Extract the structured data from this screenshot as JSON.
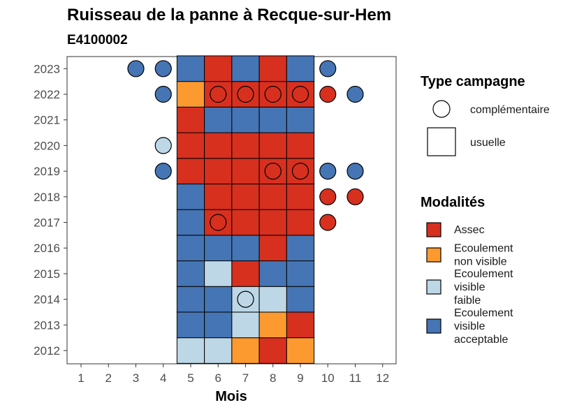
{
  "chart_data": {
    "type": "heatmap",
    "title": "Ruisseau de la panne à Recque-sur-Hem",
    "subtitle": "E4100002",
    "xlabel": "Mois",
    "ylabel": "",
    "months": [
      1,
      2,
      3,
      4,
      5,
      6,
      7,
      8,
      9,
      10,
      11,
      12
    ],
    "years": [
      2012,
      2013,
      2014,
      2015,
      2016,
      2017,
      2018,
      2019,
      2020,
      2021,
      2022,
      2023
    ],
    "legend_shape": {
      "title": "Type campagne",
      "items": [
        {
          "key": "complementaire",
          "label": "complémentaire",
          "shape": "circle"
        },
        {
          "key": "usuelle",
          "label": "usuelle",
          "shape": "square"
        }
      ]
    },
    "legend_fill": {
      "title": "Modalités",
      "items": [
        {
          "key": "assec",
          "label": "Assec",
          "color": "#d7301f",
          "lines": [
            "Assec"
          ]
        },
        {
          "key": "env",
          "label": "Ecoulement non visible",
          "color": "#fd9a2f",
          "lines": [
            "Ecoulement",
            "non visible"
          ]
        },
        {
          "key": "evf",
          "label": "Ecoulement visible faible",
          "color": "#bdd7e7",
          "lines": [
            "Ecoulement",
            "visible",
            "faible"
          ]
        },
        {
          "key": "eva",
          "label": "Ecoulement visible acceptable",
          "color": "#4575b4",
          "lines": [
            "Ecoulement",
            "visible",
            "acceptable"
          ]
        }
      ]
    },
    "observations": [
      {
        "year": 2012,
        "month": 5,
        "modalite": "evf",
        "type": "usuelle"
      },
      {
        "year": 2012,
        "month": 6,
        "modalite": "evf",
        "type": "usuelle"
      },
      {
        "year": 2012,
        "month": 7,
        "modalite": "env",
        "type": "usuelle"
      },
      {
        "year": 2012,
        "month": 8,
        "modalite": "assec",
        "type": "usuelle"
      },
      {
        "year": 2012,
        "month": 9,
        "modalite": "env",
        "type": "usuelle"
      },
      {
        "year": 2013,
        "month": 5,
        "modalite": "eva",
        "type": "usuelle"
      },
      {
        "year": 2013,
        "month": 6,
        "modalite": "eva",
        "type": "usuelle"
      },
      {
        "year": 2013,
        "month": 7,
        "modalite": "evf",
        "type": "usuelle"
      },
      {
        "year": 2013,
        "month": 8,
        "modalite": "env",
        "type": "usuelle"
      },
      {
        "year": 2013,
        "month": 9,
        "modalite": "assec",
        "type": "usuelle"
      },
      {
        "year": 2014,
        "month": 5,
        "modalite": "eva",
        "type": "usuelle"
      },
      {
        "year": 2014,
        "month": 6,
        "modalite": "eva",
        "type": "usuelle"
      },
      {
        "year": 2014,
        "month": 7,
        "modalite": "evf",
        "type": "usuelle"
      },
      {
        "year": 2014,
        "month": 7,
        "modalite": "evf",
        "type": "complementaire"
      },
      {
        "year": 2014,
        "month": 8,
        "modalite": "evf",
        "type": "usuelle"
      },
      {
        "year": 2014,
        "month": 9,
        "modalite": "eva",
        "type": "usuelle"
      },
      {
        "year": 2015,
        "month": 5,
        "modalite": "eva",
        "type": "usuelle"
      },
      {
        "year": 2015,
        "month": 6,
        "modalite": "evf",
        "type": "usuelle"
      },
      {
        "year": 2015,
        "month": 7,
        "modalite": "assec",
        "type": "usuelle"
      },
      {
        "year": 2015,
        "month": 8,
        "modalite": "eva",
        "type": "usuelle"
      },
      {
        "year": 2015,
        "month": 9,
        "modalite": "eva",
        "type": "usuelle"
      },
      {
        "year": 2016,
        "month": 5,
        "modalite": "eva",
        "type": "usuelle"
      },
      {
        "year": 2016,
        "month": 6,
        "modalite": "eva",
        "type": "usuelle"
      },
      {
        "year": 2016,
        "month": 7,
        "modalite": "eva",
        "type": "usuelle"
      },
      {
        "year": 2016,
        "month": 8,
        "modalite": "assec",
        "type": "usuelle"
      },
      {
        "year": 2016,
        "month": 9,
        "modalite": "eva",
        "type": "usuelle"
      },
      {
        "year": 2017,
        "month": 5,
        "modalite": "eva",
        "type": "usuelle"
      },
      {
        "year": 2017,
        "month": 6,
        "modalite": "assec",
        "type": "usuelle"
      },
      {
        "year": 2017,
        "month": 6,
        "modalite": "assec",
        "type": "complementaire"
      },
      {
        "year": 2017,
        "month": 7,
        "modalite": "assec",
        "type": "usuelle"
      },
      {
        "year": 2017,
        "month": 8,
        "modalite": "assec",
        "type": "usuelle"
      },
      {
        "year": 2017,
        "month": 9,
        "modalite": "assec",
        "type": "usuelle"
      },
      {
        "year": 2017,
        "month": 10,
        "modalite": "assec",
        "type": "complementaire"
      },
      {
        "year": 2018,
        "month": 5,
        "modalite": "eva",
        "type": "usuelle"
      },
      {
        "year": 2018,
        "month": 6,
        "modalite": "assec",
        "type": "usuelle"
      },
      {
        "year": 2018,
        "month": 7,
        "modalite": "assec",
        "type": "usuelle"
      },
      {
        "year": 2018,
        "month": 8,
        "modalite": "assec",
        "type": "usuelle"
      },
      {
        "year": 2018,
        "month": 9,
        "modalite": "assec",
        "type": "usuelle"
      },
      {
        "year": 2018,
        "month": 10,
        "modalite": "assec",
        "type": "complementaire"
      },
      {
        "year": 2018,
        "month": 11,
        "modalite": "assec",
        "type": "complementaire"
      },
      {
        "year": 2019,
        "month": 4,
        "modalite": "eva",
        "type": "complementaire"
      },
      {
        "year": 2019,
        "month": 5,
        "modalite": "assec",
        "type": "usuelle"
      },
      {
        "year": 2019,
        "month": 6,
        "modalite": "assec",
        "type": "usuelle"
      },
      {
        "year": 2019,
        "month": 7,
        "modalite": "assec",
        "type": "usuelle"
      },
      {
        "year": 2019,
        "month": 8,
        "modalite": "assec",
        "type": "usuelle"
      },
      {
        "year": 2019,
        "month": 8,
        "modalite": "assec",
        "type": "complementaire"
      },
      {
        "year": 2019,
        "month": 9,
        "modalite": "assec",
        "type": "usuelle"
      },
      {
        "year": 2019,
        "month": 9,
        "modalite": "assec",
        "type": "complementaire"
      },
      {
        "year": 2019,
        "month": 10,
        "modalite": "eva",
        "type": "complementaire"
      },
      {
        "year": 2019,
        "month": 11,
        "modalite": "eva",
        "type": "complementaire"
      },
      {
        "year": 2020,
        "month": 4,
        "modalite": "evf",
        "type": "complementaire"
      },
      {
        "year": 2020,
        "month": 5,
        "modalite": "assec",
        "type": "usuelle"
      },
      {
        "year": 2020,
        "month": 6,
        "modalite": "assec",
        "type": "usuelle"
      },
      {
        "year": 2020,
        "month": 7,
        "modalite": "assec",
        "type": "usuelle"
      },
      {
        "year": 2020,
        "month": 8,
        "modalite": "assec",
        "type": "usuelle"
      },
      {
        "year": 2020,
        "month": 9,
        "modalite": "assec",
        "type": "usuelle"
      },
      {
        "year": 2021,
        "month": 5,
        "modalite": "assec",
        "type": "usuelle"
      },
      {
        "year": 2021,
        "month": 6,
        "modalite": "eva",
        "type": "usuelle"
      },
      {
        "year": 2021,
        "month": 7,
        "modalite": "eva",
        "type": "usuelle"
      },
      {
        "year": 2021,
        "month": 8,
        "modalite": "eva",
        "type": "usuelle"
      },
      {
        "year": 2021,
        "month": 9,
        "modalite": "eva",
        "type": "usuelle"
      },
      {
        "year": 2022,
        "month": 4,
        "modalite": "eva",
        "type": "complementaire"
      },
      {
        "year": 2022,
        "month": 5,
        "modalite": "env",
        "type": "usuelle"
      },
      {
        "year": 2022,
        "month": 6,
        "modalite": "assec",
        "type": "usuelle"
      },
      {
        "year": 2022,
        "month": 6,
        "modalite": "assec",
        "type": "complementaire"
      },
      {
        "year": 2022,
        "month": 7,
        "modalite": "assec",
        "type": "usuelle"
      },
      {
        "year": 2022,
        "month": 7,
        "modalite": "assec",
        "type": "complementaire"
      },
      {
        "year": 2022,
        "month": 8,
        "modalite": "assec",
        "type": "usuelle"
      },
      {
        "year": 2022,
        "month": 8,
        "modalite": "assec",
        "type": "complementaire"
      },
      {
        "year": 2022,
        "month": 9,
        "modalite": "assec",
        "type": "usuelle"
      },
      {
        "year": 2022,
        "month": 9,
        "modalite": "assec",
        "type": "complementaire"
      },
      {
        "year": 2022,
        "month": 10,
        "modalite": "assec",
        "type": "complementaire"
      },
      {
        "year": 2022,
        "month": 11,
        "modalite": "eva",
        "type": "complementaire"
      },
      {
        "year": 2023,
        "month": 3,
        "modalite": "eva",
        "type": "complementaire"
      },
      {
        "year": 2023,
        "month": 4,
        "modalite": "eva",
        "type": "complementaire"
      },
      {
        "year": 2023,
        "month": 5,
        "modalite": "eva",
        "type": "usuelle"
      },
      {
        "year": 2023,
        "month": 6,
        "modalite": "assec",
        "type": "usuelle"
      },
      {
        "year": 2023,
        "month": 7,
        "modalite": "eva",
        "type": "usuelle"
      },
      {
        "year": 2023,
        "month": 8,
        "modalite": "assec",
        "type": "usuelle"
      },
      {
        "year": 2023,
        "month": 9,
        "modalite": "eva",
        "type": "usuelle"
      },
      {
        "year": 2023,
        "month": 10,
        "modalite": "eva",
        "type": "complementaire"
      }
    ]
  }
}
